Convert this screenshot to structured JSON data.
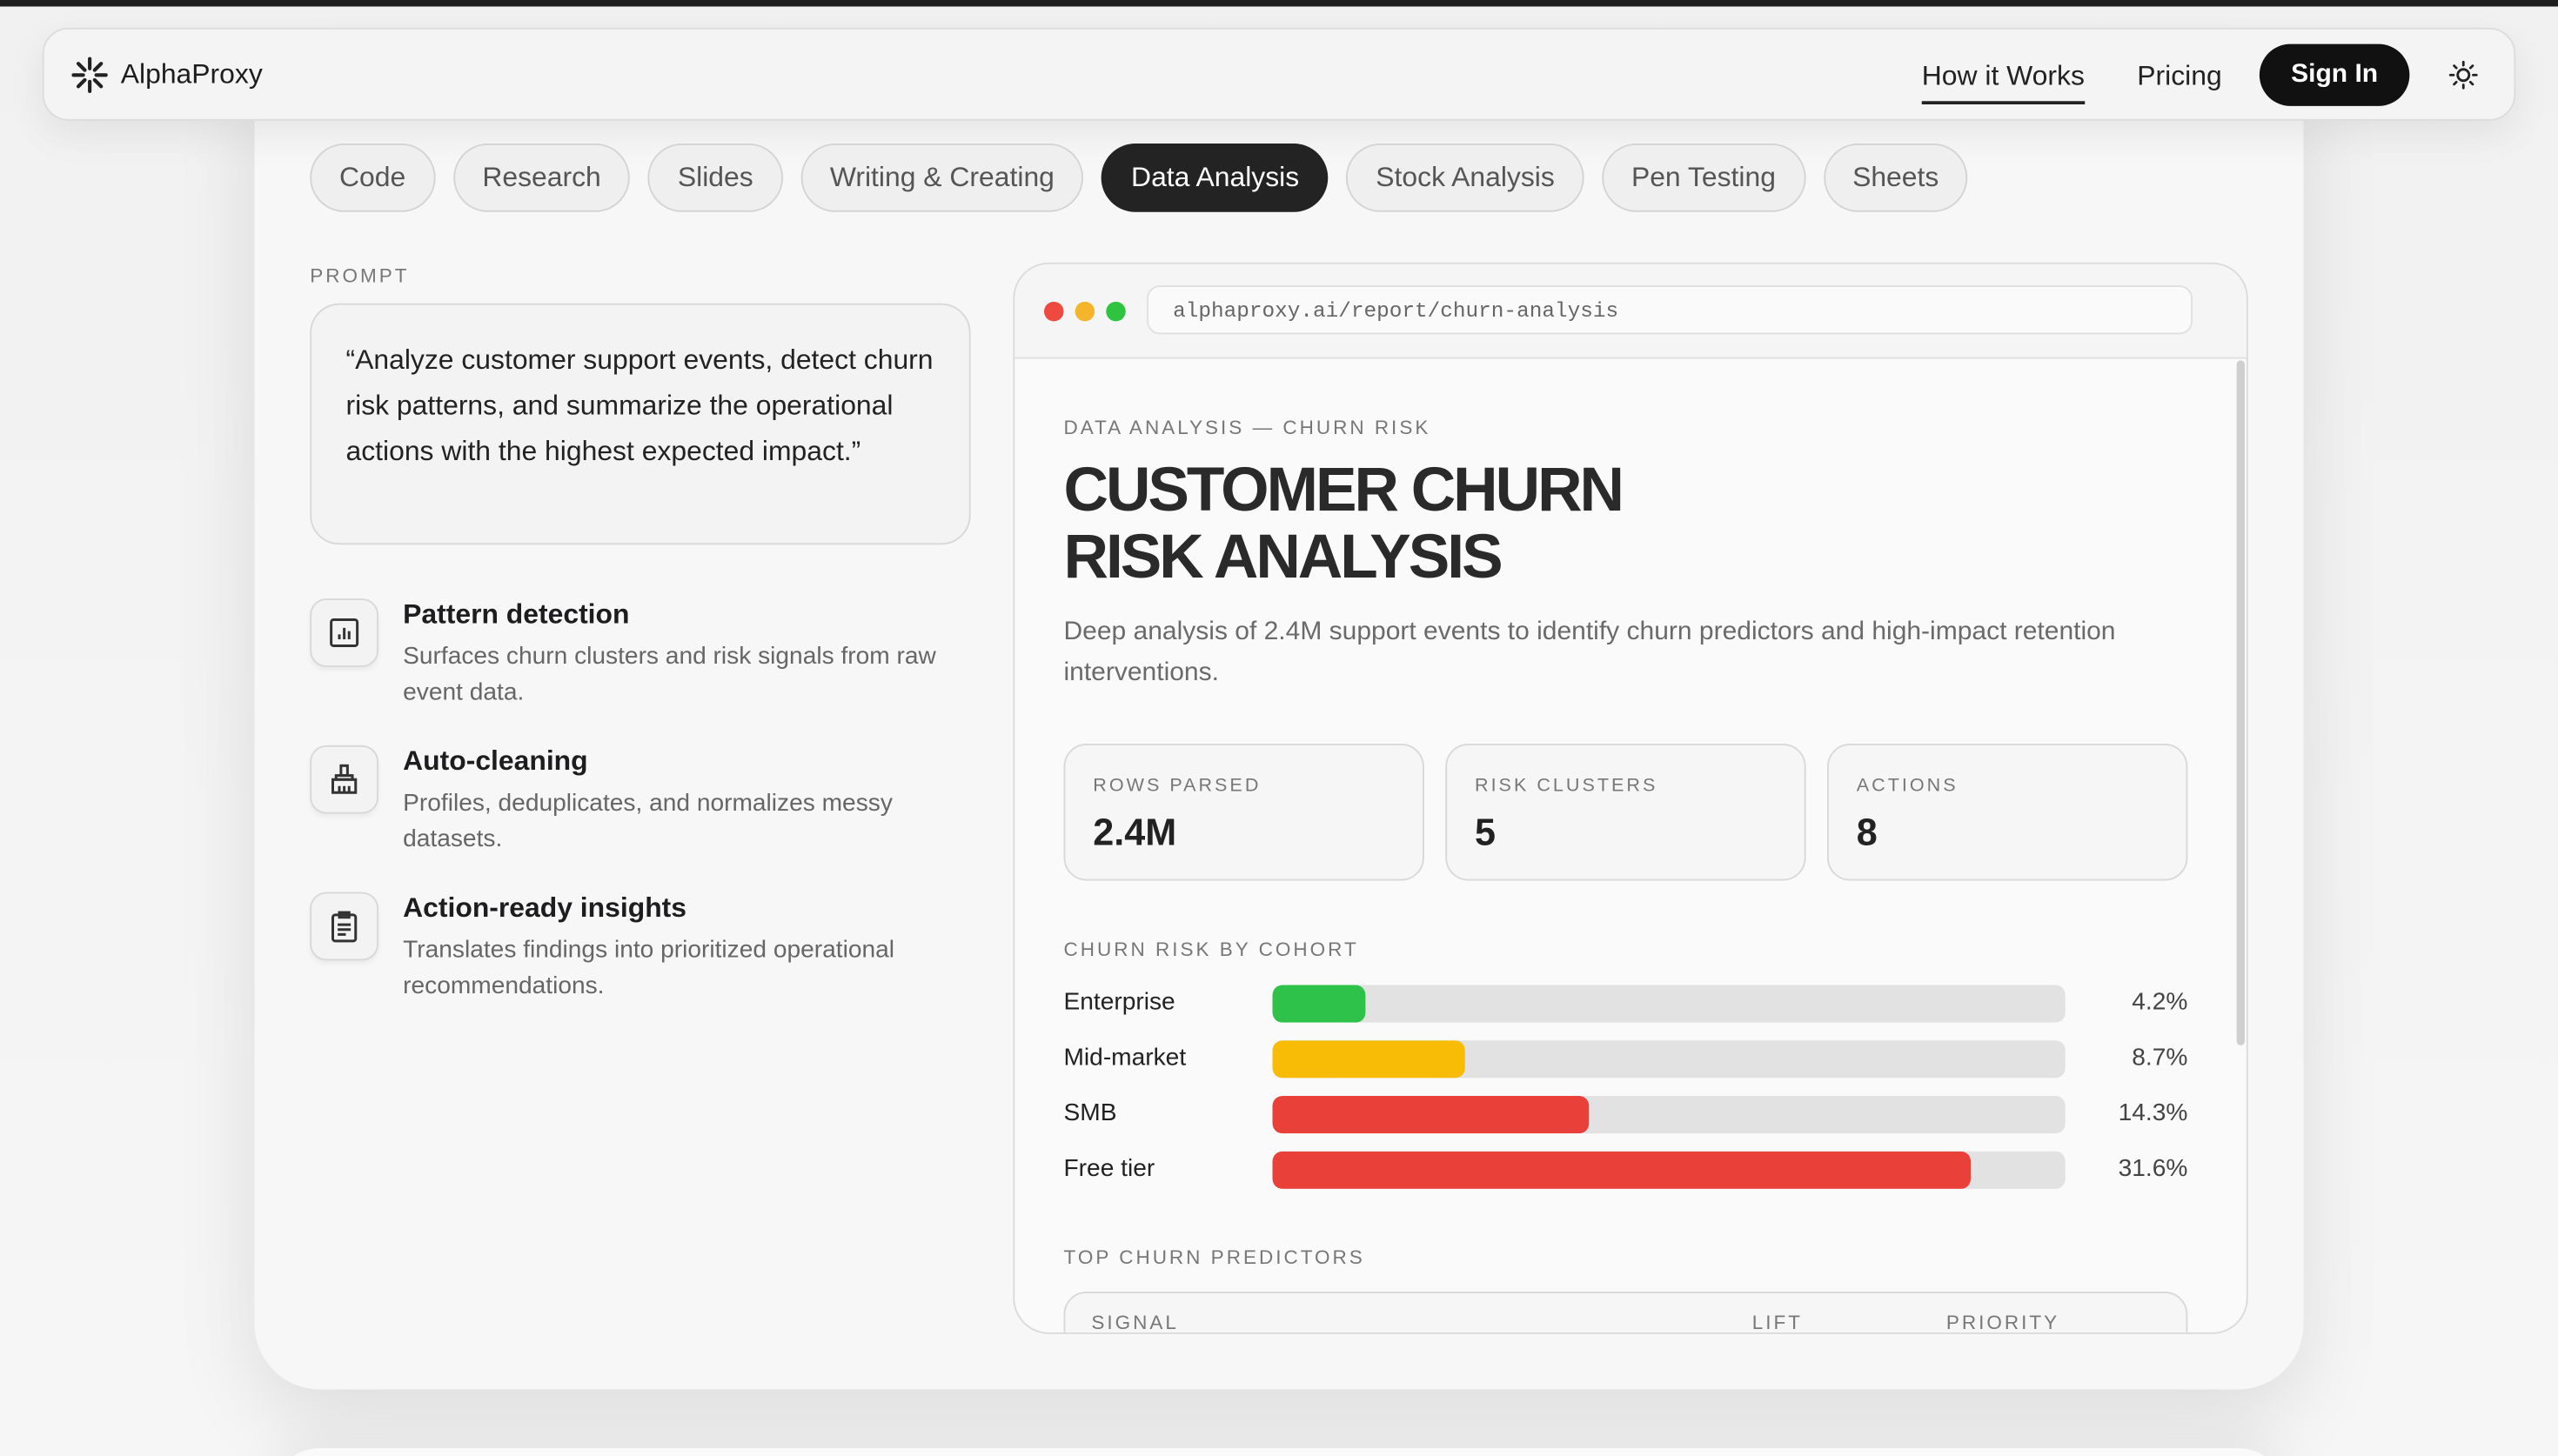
{
  "nav": {
    "brand": "AlphaProxy",
    "links": [
      "How it Works",
      "Pricing"
    ],
    "cta": "Sign In"
  },
  "tabs": [
    {
      "label": "Code"
    },
    {
      "label": "Research"
    },
    {
      "label": "Slides"
    },
    {
      "label": "Writing & Creating"
    },
    {
      "label": "Data Analysis",
      "active": true
    },
    {
      "label": "Stock Analysis"
    },
    {
      "label": "Pen Testing"
    },
    {
      "label": "Sheets"
    }
  ],
  "prompt": {
    "label": "PROMPT",
    "text": "“Analyze customer support events, detect churn risk patterns, and summarize the operational actions with the highest expected impact.”"
  },
  "features": [
    {
      "title": "Pattern detection",
      "desc": "Surfaces churn clusters and risk signals from raw event data."
    },
    {
      "title": "Auto-cleaning",
      "desc": "Profiles, deduplicates, and normalizes messy datasets."
    },
    {
      "title": "Action-ready insights",
      "desc": "Translates findings into prioritized operational recommendations."
    }
  ],
  "report": {
    "url": "alphaproxy.ai/report/churn-analysis",
    "eyebrow": "DATA ANALYSIS — CHURN RISK",
    "title": "CUSTOMER CHURN RISK ANALYSIS",
    "description": "Deep analysis of 2.4M support events to identify churn predictors and high-impact retention interventions.",
    "stats": [
      {
        "label": "ROWS PARSED",
        "value": "2.4M"
      },
      {
        "label": "RISK CLUSTERS",
        "value": "5"
      },
      {
        "label": "ACTIONS",
        "value": "8"
      }
    ],
    "chart": {
      "type": "bar",
      "title": "CHURN RISK BY COHORT",
      "categories": [
        "Enterprise",
        "Mid-market",
        "SMB",
        "Free tier"
      ],
      "values": [
        4.2,
        8.7,
        14.3,
        31.6
      ],
      "value_labels": [
        "4.2%",
        "8.7%",
        "14.3%",
        "31.6%"
      ],
      "colors": [
        "#2fc24a",
        "#f8bc06",
        "#e9413a",
        "#e9413a"
      ]
    },
    "predictors": {
      "title": "TOP CHURN PREDICTORS",
      "columns": [
        "SIGNAL",
        "LIFT",
        "PRIORITY"
      ]
    }
  }
}
